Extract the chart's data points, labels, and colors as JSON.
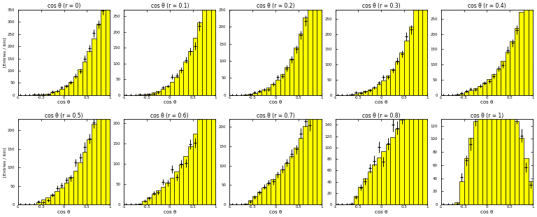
{
  "r_values": [
    0,
    0.1,
    0.2,
    0.3,
    0.4,
    0.5,
    0.6,
    0.7,
    0.8,
    1.0
  ],
  "n_bins": 20,
  "x_min": -1.0,
  "x_max": 1.0,
  "x_label": "cos θ",
  "y_label": "[Entries / bin]",
  "hist_color": "yellow",
  "hist_edge_color": "black",
  "point_color": "black",
  "background_color": "white",
  "n_events": 2000,
  "seed": 12345,
  "ylims": {
    "0": [
      0,
      350
    ],
    "0.1": [
      0,
      270
    ],
    "0.2": [
      0,
      250
    ],
    "0.3": [
      0,
      280
    ],
    "0.4": [
      0,
      280
    ],
    "0.5": [
      0,
      230
    ],
    "0.6": [
      0,
      210
    ],
    "0.7": [
      0,
      220
    ],
    "0.8": [
      0,
      150
    ],
    "1.0": [
      0,
      130
    ]
  },
  "ytick_steps": {
    "0": 50,
    "0.1": 50,
    "0.2": 50,
    "0.3": 50,
    "0.4": 50,
    "0.5": 50,
    "0.6": 50,
    "0.7": 50,
    "0.8": 20,
    "1.0": 20
  }
}
